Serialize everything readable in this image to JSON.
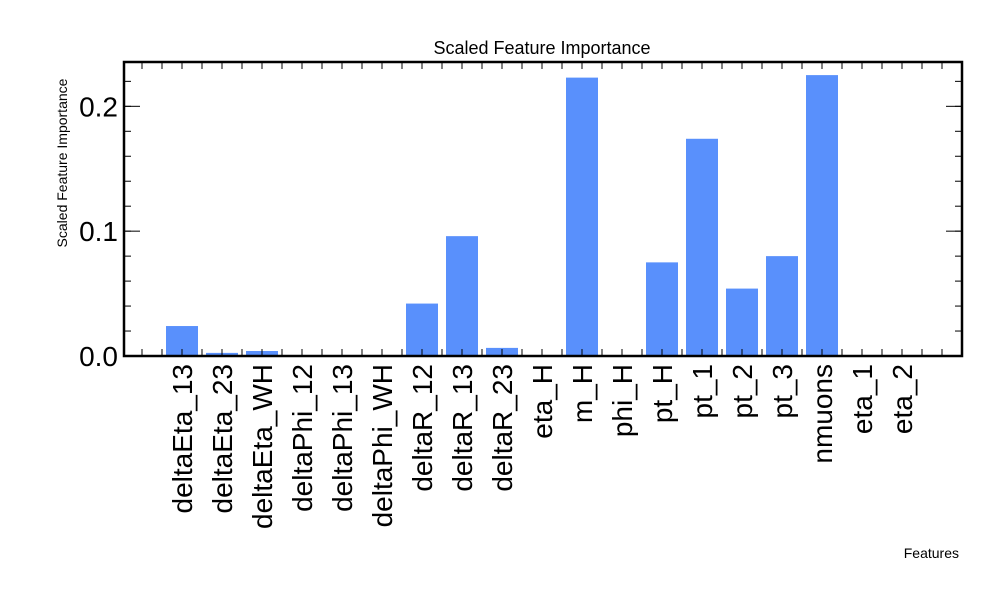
{
  "chart_data": {
    "type": "bar",
    "title": "Scaled Feature Importance",
    "xlabel": "Features",
    "ylabel": "Scaled Feature Importance",
    "categories": [
      "deltaEta_13",
      "deltaEta_23",
      "deltaEta_WH",
      "deltaPhi_12",
      "deltaPhi_13",
      "deltaPhi_WH",
      "deltaR_12",
      "deltaR_13",
      "deltaR_23",
      "eta_H",
      "m_H",
      "phi_H",
      "pt_H",
      "pt_1",
      "pt_2",
      "pt_3",
      "nmuons",
      "eta_1",
      "eta_2"
    ],
    "values": [
      0.024,
      0.0025,
      0.004,
      0.0,
      0.0,
      0.0,
      0.042,
      0.096,
      0.0065,
      0.0,
      0.223,
      0.0,
      0.075,
      0.174,
      0.054,
      0.08,
      0.225,
      0.0,
      0.0
    ],
    "yticks": [
      {
        "value": 0.0,
        "label": "0.0"
      },
      {
        "value": 0.1,
        "label": "0.1"
      },
      {
        "value": 0.2,
        "label": "0.2"
      }
    ],
    "ylim": [
      0,
      0.2355
    ],
    "minor_ytick_step": 0.02,
    "bar_color": "#5990fc",
    "grid": false
  }
}
